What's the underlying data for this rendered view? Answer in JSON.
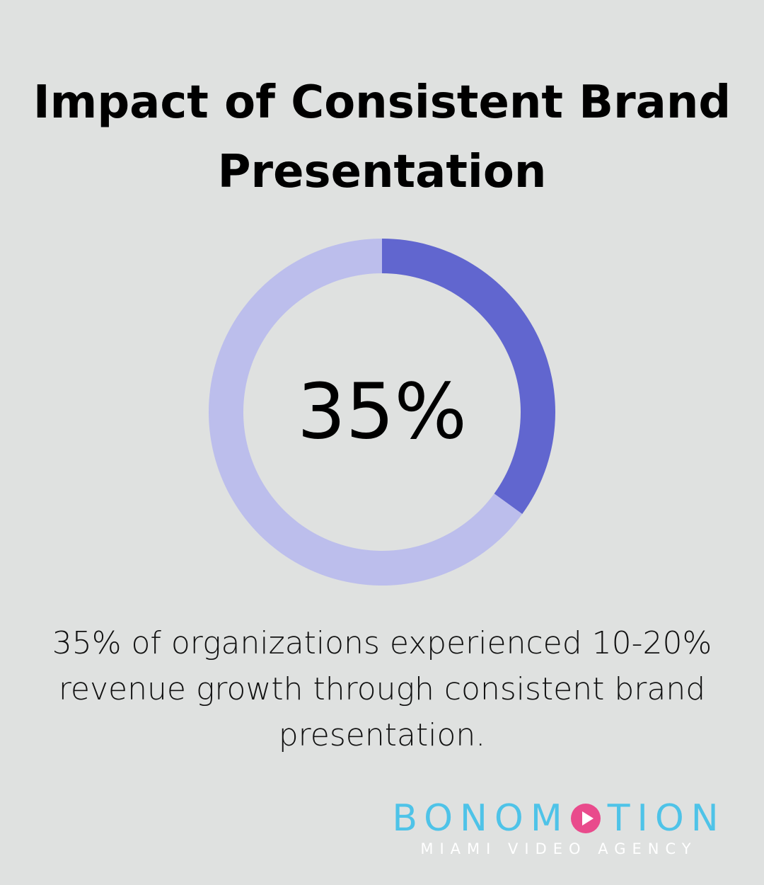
{
  "title": "Impact of Consistent Brand Presentation",
  "chart_data": {
    "type": "pie",
    "categories": [
      "",
      ""
    ],
    "values": [
      35,
      65
    ],
    "center_label": "35%",
    "colors": [
      "#6166cf",
      "#bcbeec"
    ]
  },
  "caption": "35% of organizations experienced 10-20% revenue growth through consistent brand presentation.",
  "logo": {
    "name_before": "BONOM",
    "name_after": "TION",
    "tagline": "MIAMI VIDEO AGENCY",
    "name_color": "#4ec3e8",
    "play_color": "#e94b8c",
    "icon": "play-circle-icon"
  }
}
